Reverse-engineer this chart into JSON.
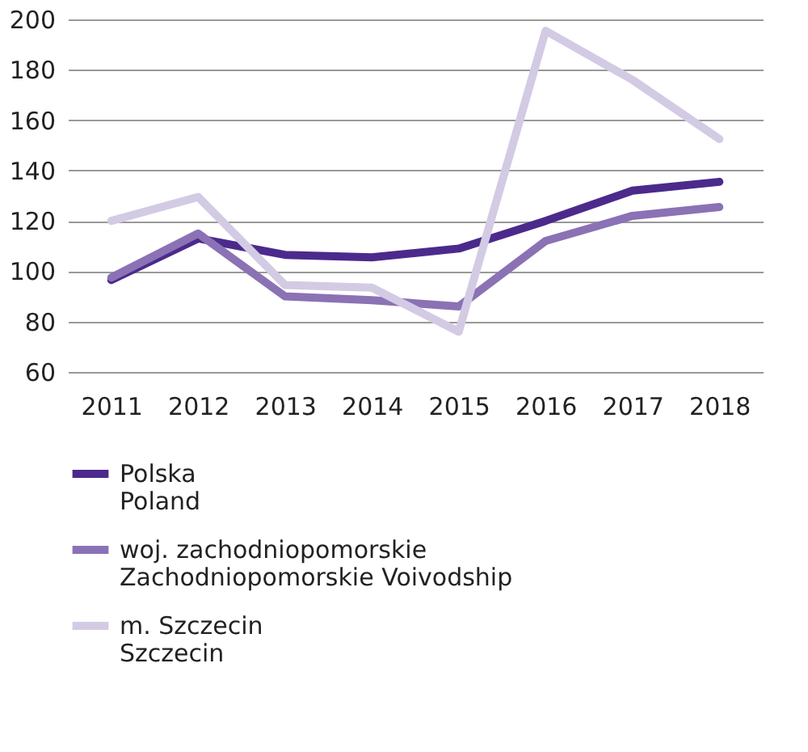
{
  "chart_data": {
    "type": "line",
    "categories": [
      "2011",
      "2012",
      "2013",
      "2014",
      "2015",
      "2016",
      "2017",
      "2018"
    ],
    "series": [
      {
        "name": "Polska\nPoland",
        "color": "#4b2a8c",
        "values": [
          96.5,
          113,
          106.5,
          105.5,
          109,
          120,
          132,
          135.5
        ]
      },
      {
        "name": "woj. zachodniopomorskie\nZachodniopomorskie Voivodship",
        "color": "#8a72b5",
        "values": [
          97.5,
          115,
          90,
          88.5,
          86,
          112,
          122,
          125.5
        ]
      },
      {
        "name": "m. Szczecin\nSzczecin",
        "color": "#d3cae4",
        "values": [
          120,
          129.5,
          94.5,
          93.5,
          76,
          195.5,
          176,
          152.5
        ]
      }
    ],
    "ylim": [
      60,
      200
    ],
    "yticks": [
      60,
      80,
      100,
      120,
      140,
      160,
      180,
      200
    ],
    "grid": "y",
    "legend": "bottom",
    "line_style": "solid",
    "marker": "none"
  }
}
